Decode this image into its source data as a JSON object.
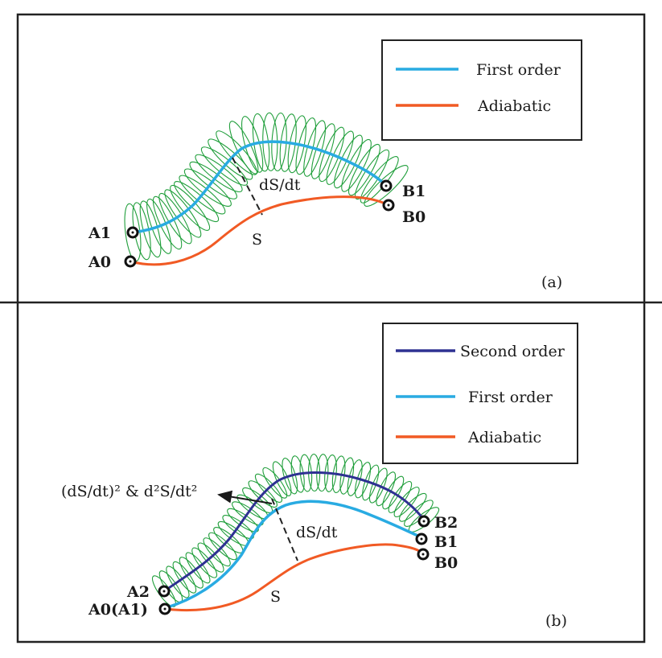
{
  "panel_a": {
    "tag": "(a)",
    "legend": [
      {
        "label": "First order",
        "color": "#29abe2"
      },
      {
        "label": "Adiabatic",
        "color": "#f15a24"
      }
    ],
    "labels": {
      "A1": "A1",
      "A0": "A0",
      "B1": "B1",
      "B0": "B0",
      "S": "S",
      "dSdt": "dS/dt"
    }
  },
  "panel_b": {
    "tag": "(b)",
    "legend": [
      {
        "label": "Second order",
        "color": "#2e3192"
      },
      {
        "label": "First order",
        "color": "#29abe2"
      },
      {
        "label": "Adiabatic",
        "color": "#f15a24"
      }
    ],
    "labels": {
      "A2": "A2",
      "A0A1": "A0(A1)",
      "B2": "B2",
      "B1": "B1",
      "B0": "B0",
      "S": "S",
      "dSdt": "dS/dt",
      "second_deriv": "(dS/dt)² & d²S/dt²"
    }
  },
  "colors": {
    "ellipse": "#1f9e3a",
    "second_order": "#2e3192",
    "first_order": "#29abe2",
    "adiabatic": "#f15a24",
    "frame": "#222222"
  }
}
